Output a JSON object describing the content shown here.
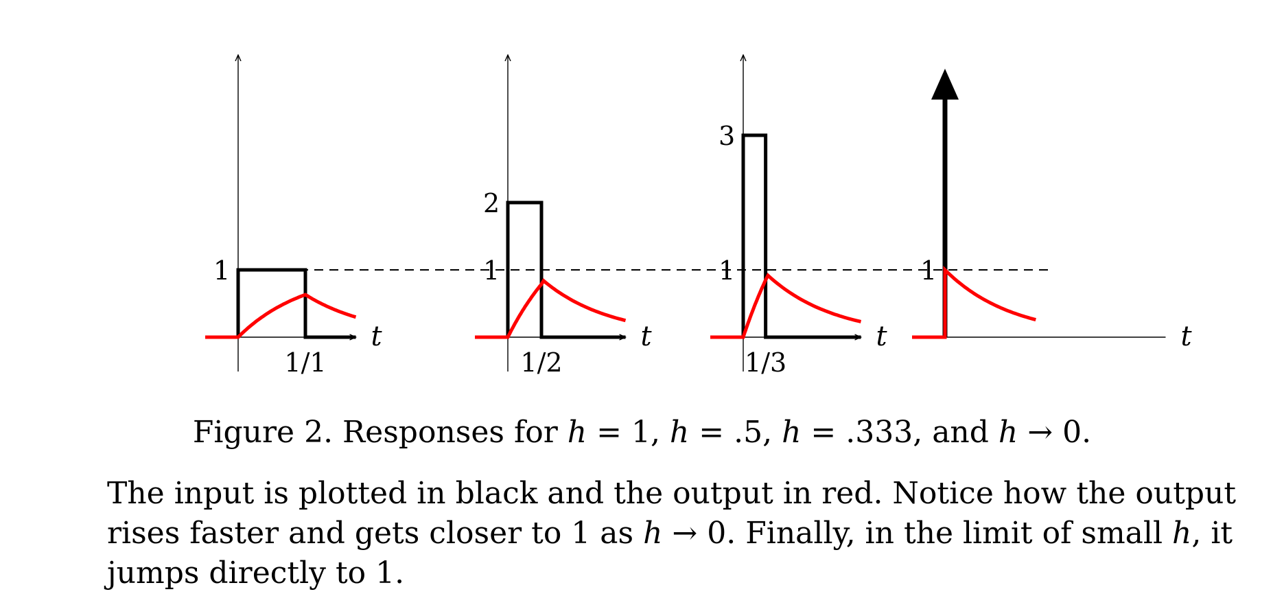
{
  "chart_data": {
    "type": "line",
    "title": "Responses for h = 1, h = .5, h = .333, and h → 0",
    "panels": [
      {
        "h": 1,
        "input_height": 1,
        "pulse_end": 1,
        "input_label": "1",
        "tick_label": "1/1",
        "axis_label": "t",
        "peak_output": 0.632
      },
      {
        "h": 0.5,
        "input_height": 2,
        "pulse_end": 0.5,
        "input_label": "2",
        "tick_label": "1/2",
        "axis_label": "t",
        "peak_output": 0.865
      },
      {
        "h": 0.333,
        "input_height": 3,
        "pulse_end": 0.333,
        "input_label": "3",
        "tick_label": "1/3",
        "axis_label": "t",
        "peak_output": 0.95
      },
      {
        "h": 0,
        "input_height": null,
        "impulse": true,
        "pulse_end": 0,
        "input_label": "",
        "tick_label": "",
        "axis_label": "t",
        "peak_output": 1
      }
    ],
    "reference_level": 1,
    "reference_label": "1",
    "series": [
      {
        "name": "input",
        "color": "#000000"
      },
      {
        "name": "output",
        "color": "#ff0000"
      }
    ]
  },
  "caption": {
    "prefix": "Figure 2. Responses for ",
    "h1": "h",
    "eq1": " = 1, ",
    "h2": "h",
    "eq2": " = .5, ",
    "h3": "h",
    "eq3": " = .333, and ",
    "h4": "h",
    "eq4": " → 0."
  },
  "paragraph": {
    "line1": "The input is plotted in black and the output in red. Notice how the output",
    "line2_a": "rises faster and gets closer to 1 as ",
    "line2_h": "h",
    "line2_b": " → 0. Finally, in the limit of small ",
    "line2_h2": "h",
    "line2_c": ", it",
    "line3": "jumps directly to 1."
  }
}
